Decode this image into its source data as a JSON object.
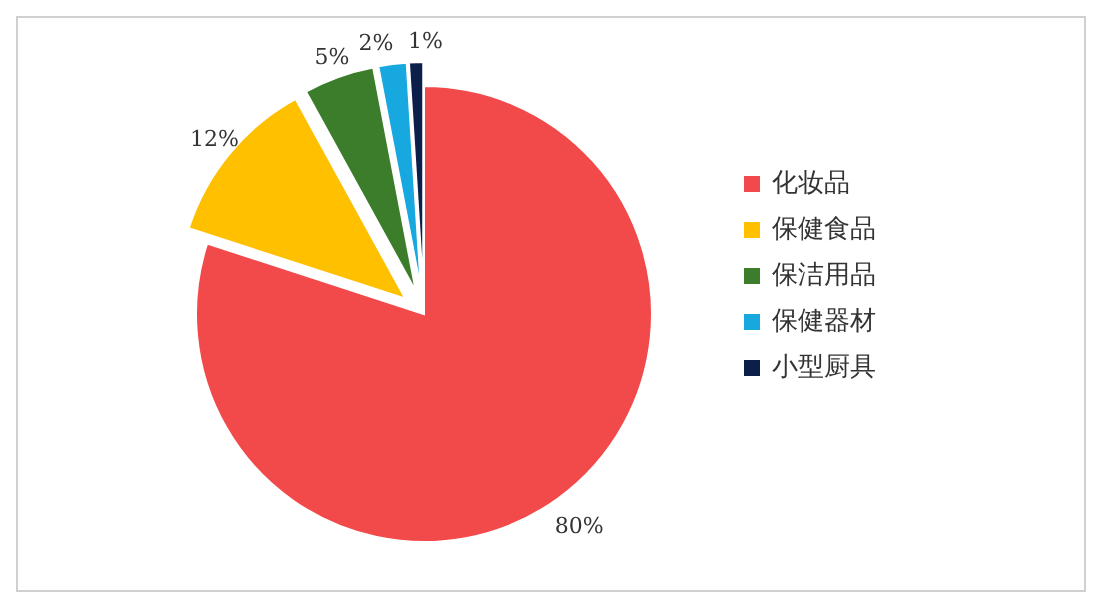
{
  "chart_data": {
    "type": "pie",
    "categories": [
      "化妆品",
      "保健食品",
      "保洁用品",
      "保健器材",
      "小型厨具"
    ],
    "values": [
      80,
      12,
      5,
      2,
      1
    ],
    "colors": [
      "#f24a4a",
      "#ffc000",
      "#3b7d2a",
      "#18a8e0",
      "#0c1e4a"
    ],
    "value_labels": [
      "80%",
      "12%",
      "5%",
      "2%",
      "1%"
    ],
    "legend": "right"
  }
}
